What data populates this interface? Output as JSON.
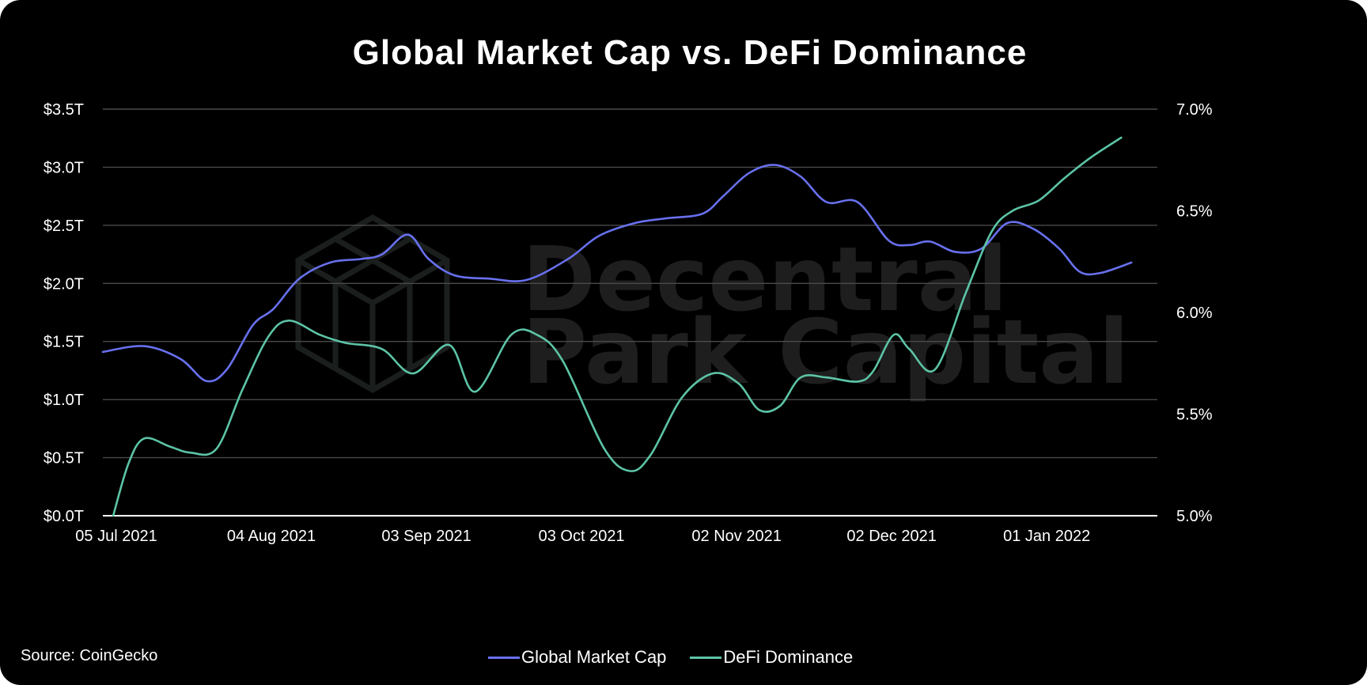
{
  "title": "Global Market Cap vs. DeFi Dominance",
  "source": "Source: CoinGecko",
  "watermark": {
    "line1": "Decentral",
    "line2": "Park Capital"
  },
  "legend": [
    {
      "label": "Global Market Cap",
      "color": "#6870ee"
    },
    {
      "label": "DeFi Dominance",
      "color": "#5cc4a6"
    }
  ],
  "colors": {
    "background": "#000000",
    "grid": "#4a4a4a",
    "text": "#ffffff"
  },
  "chart_data": {
    "type": "line",
    "title": "Global Market Cap vs. DeFi Dominance",
    "x_axis": {
      "type": "date",
      "range": [
        "2021-07-05",
        "2022-01-25"
      ],
      "ticks": [
        {
          "date": "2021-07-05",
          "label": "05 Jul 2021"
        },
        {
          "date": "2021-08-04",
          "label": "04 Aug 2021"
        },
        {
          "date": "2021-09-03",
          "label": "03 Sep 2021"
        },
        {
          "date": "2021-10-03",
          "label": "03 Oct 2021"
        },
        {
          "date": "2021-11-02",
          "label": "02 Nov 2021"
        },
        {
          "date": "2021-12-02",
          "label": "02 Dec 2021"
        },
        {
          "date": "2022-01-01",
          "label": "01 Jan 2022"
        }
      ]
    },
    "y_left": {
      "unit": "trillion USD",
      "range": [
        0,
        3.5
      ],
      "ticks": [
        {
          "value": 0,
          "label": "$0.0T"
        },
        {
          "value": 0.5,
          "label": "$0.5T"
        },
        {
          "value": 1,
          "label": "$1.0T"
        },
        {
          "value": 1.5,
          "label": "$1.5T"
        },
        {
          "value": 2,
          "label": "$2.0T"
        },
        {
          "value": 2.5,
          "label": "$2.5T"
        },
        {
          "value": 3,
          "label": "$3.0T"
        },
        {
          "value": 3.5,
          "label": "$3.5T"
        }
      ]
    },
    "y_right": {
      "unit": "percent",
      "range": [
        5.0,
        7.0
      ],
      "ticks": [
        {
          "value": 5.0,
          "label": "5.0%"
        },
        {
          "value": 5.5,
          "label": "5.5%"
        },
        {
          "value": 6.0,
          "label": "6.0%"
        },
        {
          "value": 6.5,
          "label": "6.5%"
        },
        {
          "value": 7.0,
          "label": "7.0%"
        }
      ]
    },
    "grid": true,
    "legend_position": "bottom-center",
    "series": [
      {
        "name": "Global Market Cap",
        "axis": "left",
        "color": "#6870ee",
        "points": [
          [
            "2021-07-05",
            1.41
          ],
          [
            "2021-07-13",
            1.46
          ],
          [
            "2021-07-20",
            1.35
          ],
          [
            "2021-07-25",
            1.16
          ],
          [
            "2021-07-29",
            1.26
          ],
          [
            "2021-08-03",
            1.64
          ],
          [
            "2021-08-07",
            1.78
          ],
          [
            "2021-08-12",
            2.04
          ],
          [
            "2021-08-18",
            2.18
          ],
          [
            "2021-08-24",
            2.21
          ],
          [
            "2021-08-28",
            2.25
          ],
          [
            "2021-09-02",
            2.42
          ],
          [
            "2021-09-06",
            2.21
          ],
          [
            "2021-09-11",
            2.07
          ],
          [
            "2021-09-18",
            2.04
          ],
          [
            "2021-09-25",
            2.03
          ],
          [
            "2021-10-03",
            2.21
          ],
          [
            "2021-10-09",
            2.41
          ],
          [
            "2021-10-16",
            2.52
          ],
          [
            "2021-10-22",
            2.56
          ],
          [
            "2021-10-29",
            2.6
          ],
          [
            "2021-11-02",
            2.75
          ],
          [
            "2021-11-07",
            2.95
          ],
          [
            "2021-11-12",
            3.02
          ],
          [
            "2021-11-17",
            2.92
          ],
          [
            "2021-11-22",
            2.7
          ],
          [
            "2021-11-28",
            2.7
          ],
          [
            "2021-12-04",
            2.37
          ],
          [
            "2021-12-08",
            2.33
          ],
          [
            "2021-12-12",
            2.36
          ],
          [
            "2021-12-17",
            2.27
          ],
          [
            "2021-12-22",
            2.3
          ],
          [
            "2021-12-27",
            2.52
          ],
          [
            "2022-01-01",
            2.47
          ],
          [
            "2022-01-06",
            2.3
          ],
          [
            "2022-01-10",
            2.1
          ],
          [
            "2022-01-14",
            2.09
          ],
          [
            "2022-01-20",
            2.18
          ]
        ]
      },
      {
        "name": "DeFi Dominance",
        "axis": "right",
        "color": "#5cc4a6",
        "points": [
          [
            "2021-07-07",
            5.0
          ],
          [
            "2021-07-10",
            5.26
          ],
          [
            "2021-07-13",
            5.38
          ],
          [
            "2021-07-18",
            5.34
          ],
          [
            "2021-07-22",
            5.31
          ],
          [
            "2021-07-27",
            5.33
          ],
          [
            "2021-08-01",
            5.62
          ],
          [
            "2021-08-06",
            5.88
          ],
          [
            "2021-08-10",
            5.96
          ],
          [
            "2021-08-16",
            5.89
          ],
          [
            "2021-08-21",
            5.85
          ],
          [
            "2021-08-28",
            5.82
          ],
          [
            "2021-09-03",
            5.7
          ],
          [
            "2021-09-10",
            5.84
          ],
          [
            "2021-09-15",
            5.61
          ],
          [
            "2021-09-22",
            5.89
          ],
          [
            "2021-09-27",
            5.89
          ],
          [
            "2021-10-02",
            5.76
          ],
          [
            "2021-10-10",
            5.33
          ],
          [
            "2021-10-15",
            5.22
          ],
          [
            "2021-10-19",
            5.3
          ],
          [
            "2021-10-25",
            5.58
          ],
          [
            "2021-10-31",
            5.7
          ],
          [
            "2021-11-05",
            5.65
          ],
          [
            "2021-11-09",
            5.52
          ],
          [
            "2021-11-13",
            5.54
          ],
          [
            "2021-11-17",
            5.68
          ],
          [
            "2021-11-22",
            5.68
          ],
          [
            "2021-11-28",
            5.66
          ],
          [
            "2021-12-01",
            5.71
          ],
          [
            "2021-12-05",
            5.89
          ],
          [
            "2021-12-08",
            5.82
          ],
          [
            "2021-12-13",
            5.72
          ],
          [
            "2021-12-19",
            6.1
          ],
          [
            "2021-12-24",
            6.4
          ],
          [
            "2021-12-28",
            6.5
          ],
          [
            "2022-01-02",
            6.55
          ],
          [
            "2022-01-07",
            6.66
          ],
          [
            "2022-01-12",
            6.76
          ],
          [
            "2022-01-18",
            6.86
          ]
        ]
      }
    ]
  }
}
